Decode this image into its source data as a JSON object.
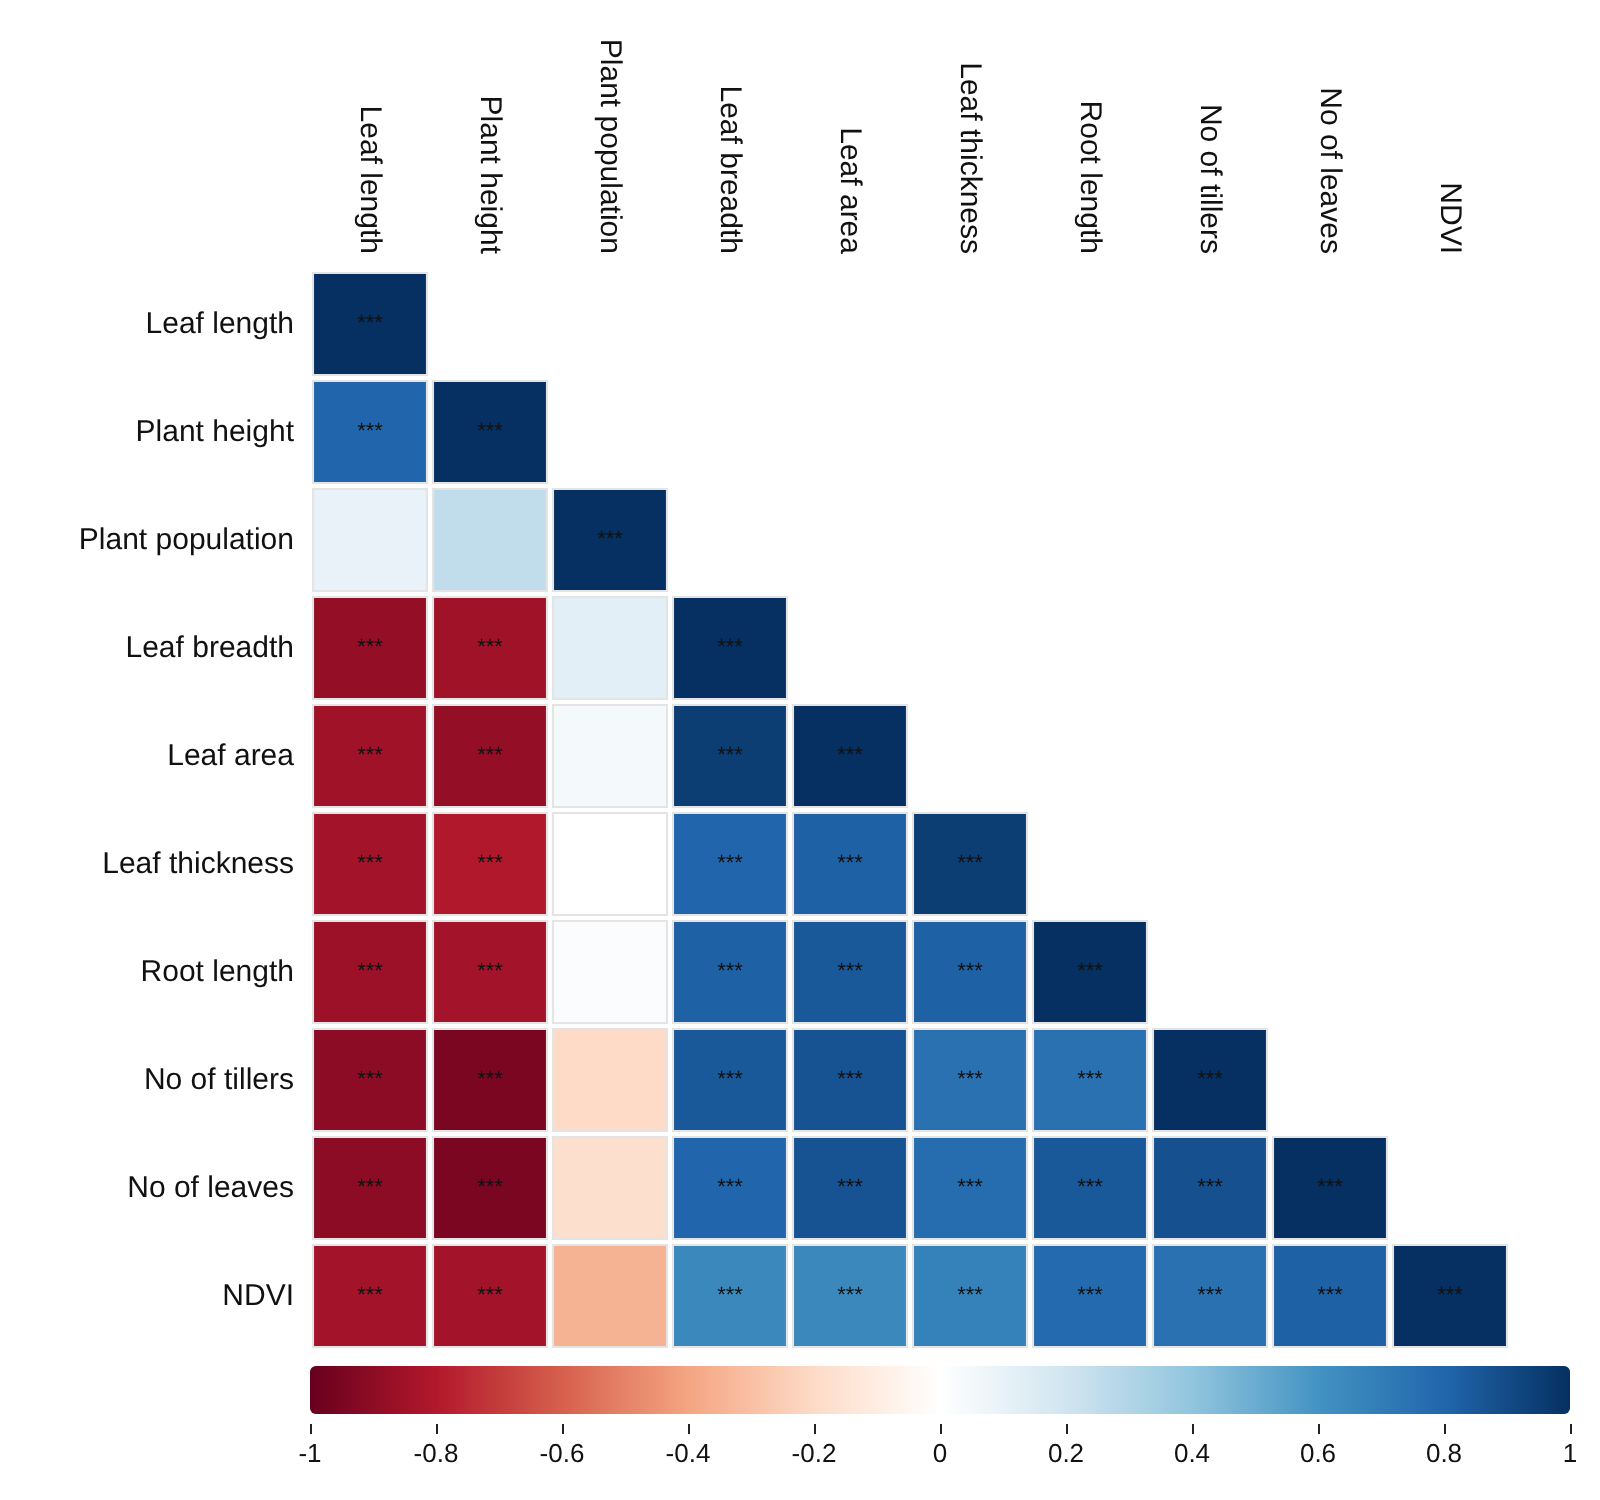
{
  "chart_data": {
    "type": "heatmap",
    "categories": [
      "Leaf length",
      "Plant height",
      "Plant population",
      "Leaf breadth",
      "Leaf area",
      "Leaf thickness",
      "Root length",
      "No of tillers",
      "No of leaves",
      "NDVI"
    ],
    "y_categories": [
      "Leaf length",
      "Plant height",
      "Plant population",
      "Leaf breadth",
      "Leaf area",
      "Leaf thickness",
      "Root length",
      "No of tillers",
      "No of leaves",
      "NDVI"
    ],
    "cells": [
      [
        1,
        null,
        null,
        null,
        null,
        null,
        null,
        null,
        null,
        null
      ],
      [
        0.8,
        1,
        null,
        null,
        null,
        null,
        null,
        null,
        null,
        null
      ],
      [
        0.1,
        0.25,
        1,
        null,
        null,
        null,
        null,
        null,
        null,
        null
      ],
      [
        -0.88,
        -0.85,
        0.12,
        1,
        null,
        null,
        null,
        null,
        null,
        null
      ],
      [
        -0.85,
        -0.88,
        0.05,
        0.95,
        1,
        null,
        null,
        null,
        null,
        null
      ],
      [
        -0.84,
        -0.8,
        0,
        0.8,
        0.82,
        0.95,
        null,
        null,
        null,
        null
      ],
      [
        -0.86,
        -0.84,
        0.02,
        0.82,
        0.85,
        0.82,
        1,
        null,
        null,
        null
      ],
      [
        -0.9,
        -0.95,
        -0.2,
        0.85,
        0.87,
        0.75,
        0.75,
        1,
        null,
        null
      ],
      [
        -0.9,
        -0.95,
        -0.18,
        0.8,
        0.87,
        0.77,
        0.85,
        0.88,
        1,
        null
      ],
      [
        -0.84,
        -0.84,
        -0.35,
        0.65,
        0.65,
        0.68,
        0.78,
        0.75,
        0.82,
        1
      ]
    ],
    "cell_labels": [
      [
        "***",
        null,
        null,
        null,
        null,
        null,
        null,
        null,
        null,
        null
      ],
      [
        "***",
        "***",
        null,
        null,
        null,
        null,
        null,
        null,
        null,
        null
      ],
      [
        null,
        null,
        "***",
        null,
        null,
        null,
        null,
        null,
        null,
        null
      ],
      [
        "***",
        "***",
        null,
        "***",
        null,
        null,
        null,
        null,
        null,
        null
      ],
      [
        "***",
        "***",
        null,
        "***",
        "***",
        null,
        null,
        null,
        null,
        null
      ],
      [
        "***",
        "***",
        null,
        "***",
        "***",
        "***",
        null,
        null,
        null,
        null
      ],
      [
        "***",
        "***",
        null,
        "***",
        "***",
        "***",
        "***",
        null,
        null,
        null
      ],
      [
        "***",
        "***",
        null,
        "***",
        "***",
        "***",
        "***",
        "***",
        null,
        null
      ],
      [
        "***",
        "***",
        null,
        "***",
        "***",
        "***",
        "***",
        "***",
        "***",
        null
      ],
      [
        "***",
        "***",
        null,
        "***",
        "***",
        "***",
        "***",
        "***",
        "***",
        "***"
      ]
    ],
    "clim": [
      -1,
      1
    ],
    "cticks": [
      -1,
      -0.8,
      -0.6,
      -0.4,
      -0.2,
      0,
      0.2,
      0.4,
      0.6,
      0.8,
      1
    ]
  }
}
